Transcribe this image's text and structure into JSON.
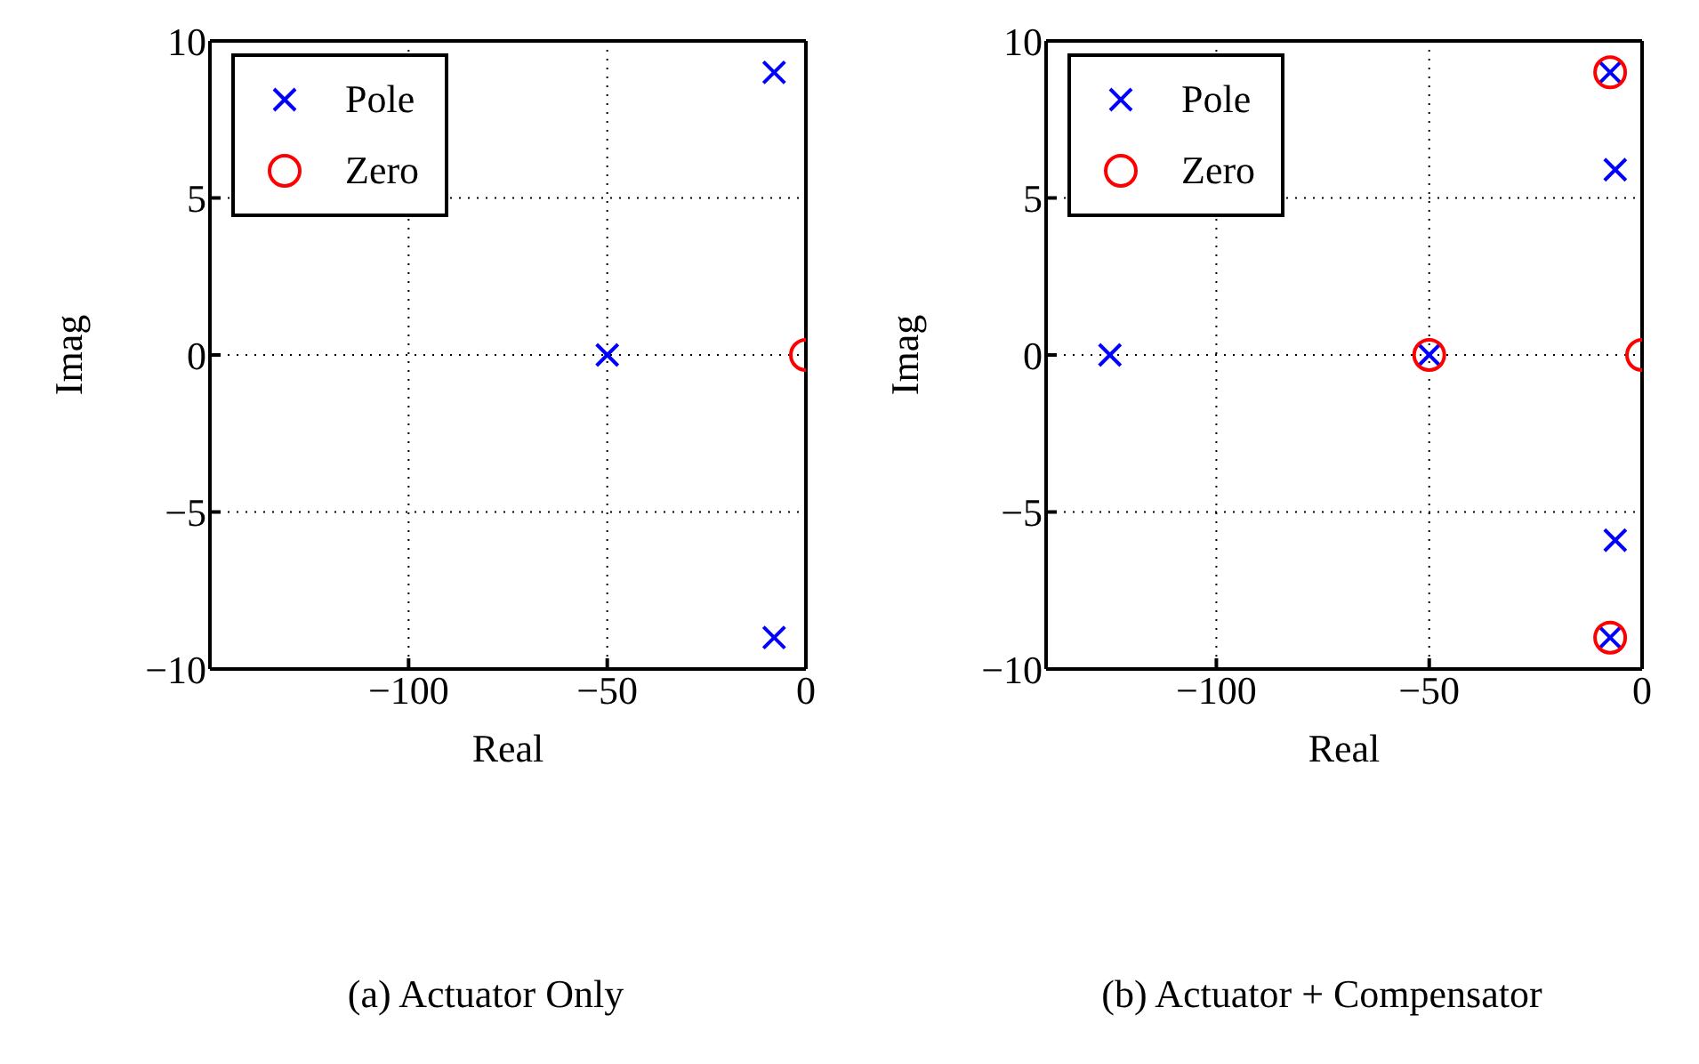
{
  "chart_data": [
    {
      "type": "scatter",
      "title": "(a) Actuator Only",
      "xlabel": "Real",
      "ylabel": "Imag",
      "xlim": [
        -150,
        0
      ],
      "xticks": [
        -100,
        -50,
        0
      ],
      "ylim": [
        -10,
        10
      ],
      "yticks": [
        -10,
        -5,
        0,
        5,
        10
      ],
      "grid": true,
      "legend": "top left",
      "line_style": "dotted",
      "series": [
        {
          "name": "Pole",
          "color": "#0000ff",
          "marker": "cross",
          "x": [
            -8,
            -50,
            -8
          ],
          "values": [
            9,
            0,
            -9
          ]
        },
        {
          "name": "Zero",
          "color": "#ff0000",
          "marker": "circle",
          "x": [
            0
          ],
          "values": [
            0
          ]
        }
      ]
    },
    {
      "type": "scatter",
      "title": "(b) Actuator + Compensator",
      "xlabel": "Real",
      "ylabel": "Imag",
      "xlim": [
        -140,
        0
      ],
      "xticks": [
        -100,
        -50,
        0
      ],
      "ylim": [
        -10,
        10
      ],
      "yticks": [
        -10,
        -5,
        0,
        5,
        10
      ],
      "grid": true,
      "legend": "top left",
      "line_style": "dotted",
      "series": [
        {
          "name": "Pole",
          "color": "#0000ff",
          "marker": "cross",
          "x": [
            -125,
            -50,
            -7.5,
            -6.3,
            -6.3,
            -7.5
          ],
          "values": [
            0,
            0,
            9,
            5.9,
            -5.9,
            -9
          ]
        },
        {
          "name": "Zero",
          "color": "#ff0000",
          "marker": "circle",
          "x": [
            -7.5,
            -50,
            0,
            -7.5
          ],
          "values": [
            9,
            0,
            0,
            -9
          ]
        }
      ]
    }
  ]
}
